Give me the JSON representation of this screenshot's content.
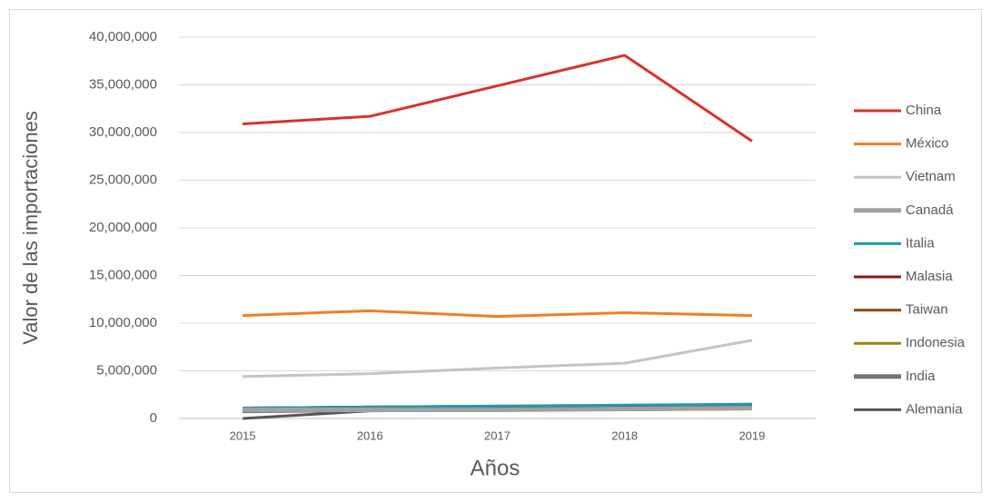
{
  "chart_data": {
    "type": "line",
    "xlabel": "Años",
    "ylabel": "Valor de las importaciones",
    "categories": [
      "2015",
      "2016",
      "2017",
      "2018",
      "2019"
    ],
    "ylim": [
      0,
      40000000
    ],
    "yticks": [
      0,
      {
        "value": 5000000,
        "label": "5,000,000"
      },
      {
        "value": 10000000,
        "label": "10,000,000"
      },
      {
        "value": 15000000,
        "label": "15,000,000"
      },
      {
        "value": 20000000,
        "label": "20,000,000"
      },
      {
        "value": 25000000,
        "label": "25,000,000"
      },
      {
        "value": 30000000,
        "label": "30,000,000"
      },
      {
        "value": 35000000,
        "label": "35,000,000"
      },
      {
        "value": 40000000,
        "label": "40,000,000"
      }
    ],
    "grid": true,
    "legend": "right",
    "series": [
      {
        "name": "China",
        "color": "#d9322a",
        "values": [
          30900000,
          31700000,
          34900000,
          38100000,
          29100000
        ]
      },
      {
        "name": "México",
        "color": "#f07f22",
        "values": [
          10800000,
          11300000,
          10700000,
          11100000,
          10800000
        ]
      },
      {
        "name": "Vietnam",
        "color": "#c4c4c4",
        "values": [
          4400000,
          4700000,
          5300000,
          5800000,
          8200000
        ]
      },
      {
        "name": "Canadá",
        "color": "#a0a0a0",
        "values": [
          900000,
          900000,
          900000,
          1000000,
          1100000
        ]
      },
      {
        "name": "Italia",
        "color": "#1a9bb0",
        "values": [
          1100000,
          1200000,
          1300000,
          1400000,
          1500000
        ]
      },
      {
        "name": "Malasia",
        "color": "#8b1a1a",
        "values": [
          1100000,
          1200000,
          1200000,
          1300000,
          1400000
        ]
      },
      {
        "name": "Taiwan",
        "color": "#8c4a0e",
        "values": [
          1100000,
          1200000,
          1300000,
          1300000,
          1500000
        ]
      },
      {
        "name": "Indonesia",
        "color": "#9c8410",
        "values": [
          1000000,
          1100000,
          1200000,
          1200000,
          1300000
        ]
      },
      {
        "name": "India",
        "color": "#747474",
        "values": [
          800000,
          900000,
          1000000,
          1000000,
          1200000
        ]
      },
      {
        "name": "Alemania",
        "color": "#555555",
        "values": [
          0,
          800000,
          900000,
          900000,
          1000000
        ]
      }
    ]
  }
}
